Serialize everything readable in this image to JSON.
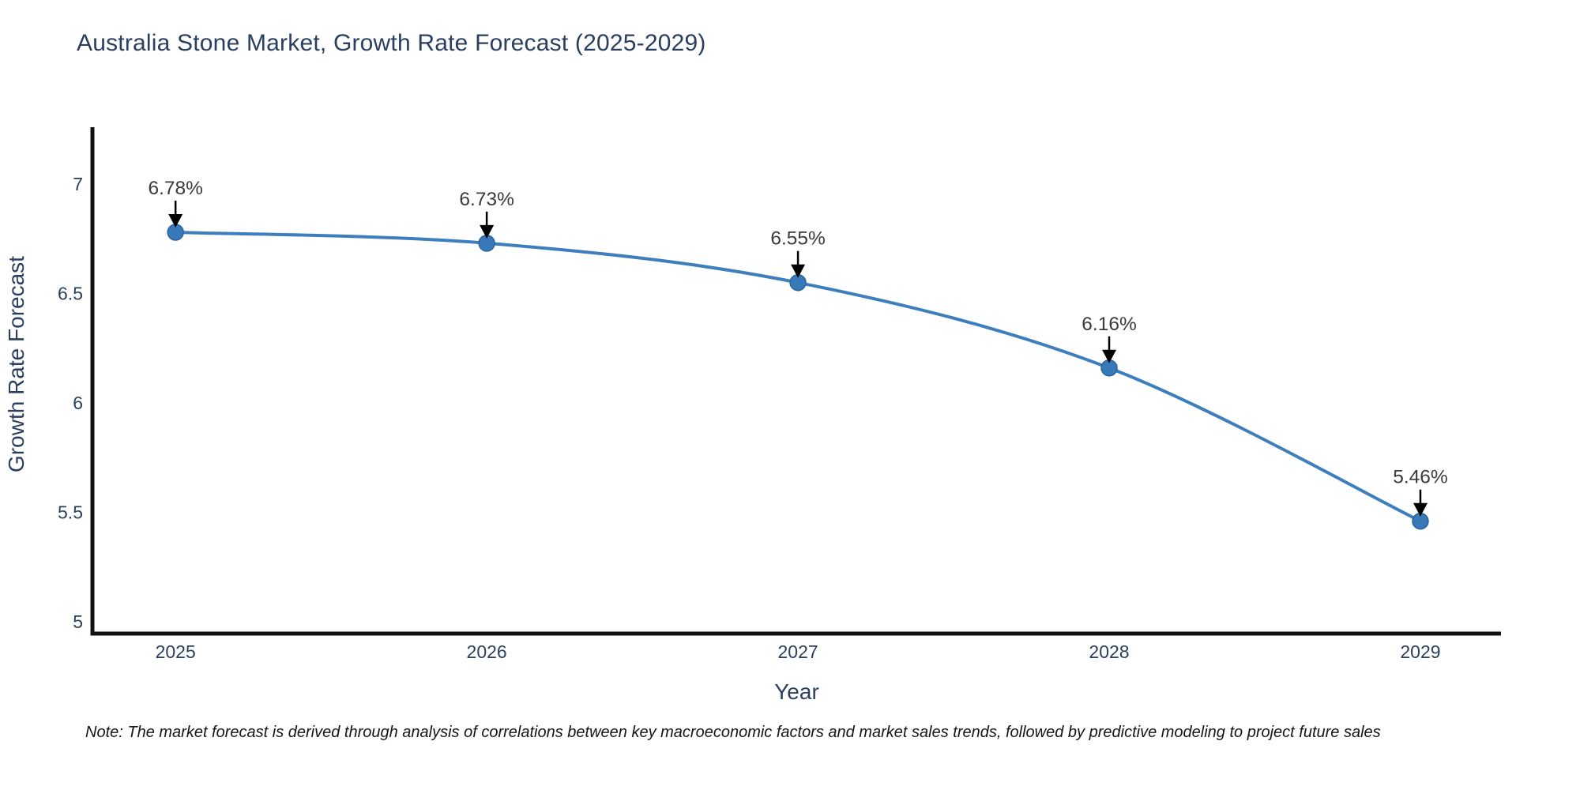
{
  "page": {
    "note": "Note: The market forecast is derived through analysis of correlations between key macroeconomic factors and market sales trends, followed by predictive modeling to project future sales"
  },
  "chart_data": {
    "type": "line",
    "title": "Australia Stone Market, Growth Rate Forecast (2025-2029)",
    "x": [
      2025,
      2026,
      2027,
      2028,
      2029
    ],
    "xtick_labels": [
      "2025",
      "2026",
      "2027",
      "2028",
      "2029"
    ],
    "series": [
      {
        "name": "Growth Rate Forecast",
        "values": [
          6.78,
          6.73,
          6.55,
          6.16,
          5.46
        ]
      }
    ],
    "point_labels": [
      "6.78%",
      "6.73%",
      "6.55%",
      "6.16%",
      "5.46%"
    ],
    "xlabel": "Year",
    "ylabel": "Growth Rate Forecast",
    "ytick_labels": [
      "5",
      "5.5",
      "6",
      "6.5",
      "7"
    ],
    "ytick_values": [
      5,
      5.5,
      6,
      6.5,
      7
    ],
    "xlim": [
      2024.733,
      2029.259
    ],
    "ylim": [
      4.95,
      7.26
    ],
    "grid": false,
    "legend_position": "none",
    "line_shape": "spline",
    "annotation_style": "arrow-down-to-point",
    "colors": {
      "line": "#3d7ebd",
      "marker_fill": "#3879ba",
      "marker_edge": "#2d659b",
      "arrow": "#000000",
      "annotation_text": "#3a3a3a",
      "axis_line": "#111111",
      "tick_text": "#2a3f5f",
      "axis_title_text": "#2a3f5f",
      "title_text": "#2a3f5f",
      "note_text": "#151515",
      "background": "#ffffff"
    }
  }
}
